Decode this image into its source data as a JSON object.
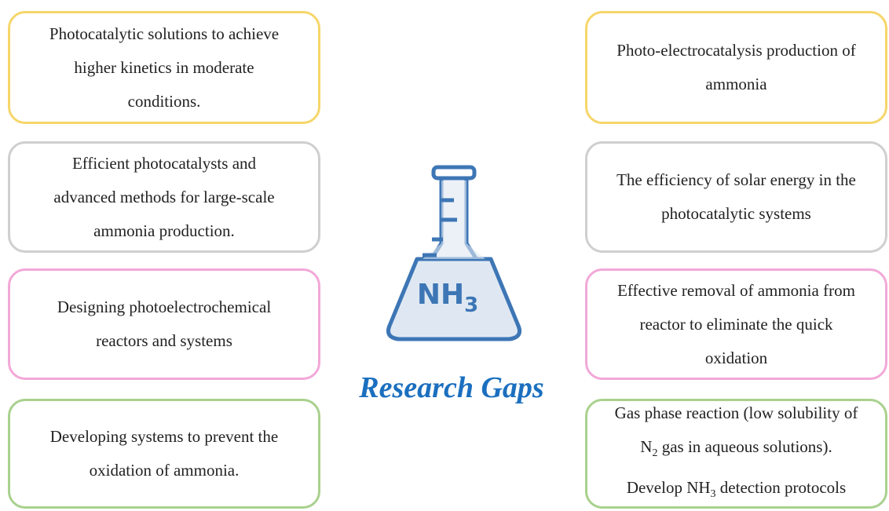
{
  "title": "Research Gaps",
  "flask_label": [
    "NH",
    "3"
  ],
  "left": [
    {
      "color": "#f6d66a",
      "lines": [
        "Photocatalytic solutions to achieve",
        "higher kinetics in moderate",
        "conditions."
      ]
    },
    {
      "color": "#cfcfcf",
      "lines": [
        "Efficient photocatalysts and",
        "advanced methods for large-scale",
        "ammonia production."
      ]
    },
    {
      "color": "#f2a8d8",
      "lines": [
        "Designing photoelectrochemical",
        "reactors and systems"
      ]
    },
    {
      "color": "#a9d18e",
      "lines": [
        "Developing systems to prevent the",
        "oxidation of ammonia."
      ]
    }
  ],
  "right": [
    {
      "color": "#f6d66a",
      "lines": [
        "Photo-electrocatalysis production of",
        "ammonia"
      ]
    },
    {
      "color": "#cfcfcf",
      "lines": [
        "The efficiency of solar energy in the",
        "photocatalytic systems"
      ]
    },
    {
      "color": "#f2a8d8",
      "lines": [
        "Effective removal of ammonia from",
        "reactor to eliminate the quick",
        "oxidation"
      ]
    },
    {
      "color": "#a9d18e",
      "lines": [
        "Gas phase reaction (low solubility of",
        [
          {
            "t": "N"
          },
          {
            "t": "2",
            "sub": true
          },
          {
            "t": " gas in aqueous solutions)."
          }
        ],
        [
          {
            "t": "Develop NH"
          },
          {
            "t": "3",
            "sub": true
          },
          {
            "t": " detection protocols"
          }
        ]
      ]
    }
  ]
}
